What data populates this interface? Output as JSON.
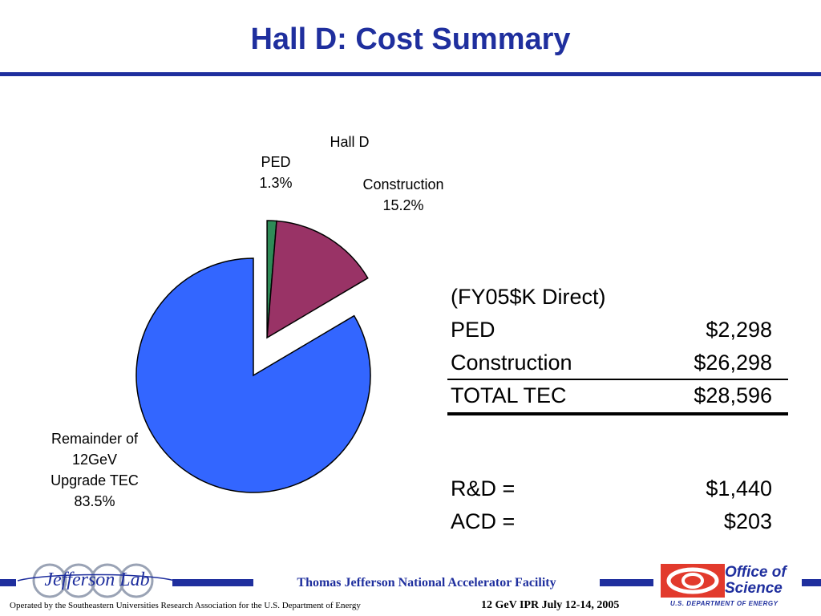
{
  "slide": {
    "title": "Hall D: Cost Summary"
  },
  "chart_data": {
    "type": "pie",
    "title": "",
    "slices": [
      {
        "name": "Hall D PED",
        "label_lines": [
          "PED",
          "1.3%"
        ],
        "value": 1.3,
        "color": "#2e8b57",
        "exploded": true
      },
      {
        "name": "Hall D Construction",
        "label_lines": [
          "Construction",
          "15.2%"
        ],
        "value": 15.2,
        "color": "#993366",
        "exploded": true
      },
      {
        "name": "Remainder of 12GeV Upgrade TEC",
        "label_lines": [
          "Remainder of",
          "12GeV",
          "Upgrade TEC",
          "83.5%"
        ],
        "value": 83.5,
        "color": "#3366ff",
        "exploded": false
      }
    ],
    "group_label": "Hall D"
  },
  "table": {
    "header": "(FY05$K Direct)",
    "rows": [
      {
        "label": "PED",
        "value": "$2,298"
      },
      {
        "label": "Construction",
        "value": "$26,298"
      },
      {
        "label": "TOTAL TEC",
        "value": "$28,596"
      }
    ],
    "extra_rows": [
      {
        "label": "R&D =",
        "value": "$1,440"
      },
      {
        "label": "ACD =",
        "value": "$203"
      }
    ]
  },
  "footer": {
    "lab_logo_text": "Jefferson Lab",
    "facility": "Thomas Jefferson National Accelerator Facility",
    "operated_by": "Operated by the Southeastern Universities Research Association for the U.S. Department of  Energy",
    "meeting": "12 GeV IPR July 12-14, 2005",
    "office_line1": "Office of",
    "office_line2": "Science",
    "doe": "U.S. DEPARTMENT OF ENERGY",
    "colors": {
      "brand_blue": "#1f2f9e",
      "doe_red": "#e23a2c"
    }
  }
}
